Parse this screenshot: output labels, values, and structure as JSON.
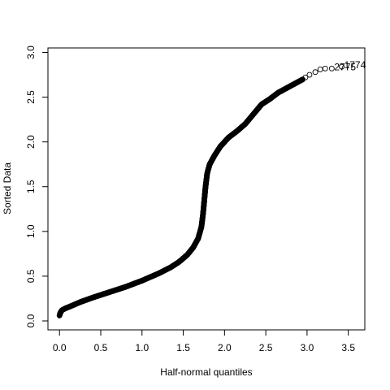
{
  "chart_data": {
    "type": "scatter",
    "title": "",
    "xlabel": "Half-normal quantiles",
    "ylabel": "Sorted Data",
    "xlim": [
      -0.14,
      3.7
    ],
    "ylim": [
      -0.1,
      3.05
    ],
    "x_ticks": [
      0.0,
      0.5,
      1.0,
      1.5,
      2.0,
      2.5,
      3.0,
      3.5
    ],
    "x_tick_labels": [
      "0.0",
      "0.5",
      "1.0",
      "1.5",
      "2.0",
      "2.5",
      "3.0",
      "3.5"
    ],
    "y_ticks": [
      0.0,
      0.5,
      1.0,
      1.5,
      2.0,
      2.5,
      3.0
    ],
    "y_tick_labels": [
      "0.0",
      "0.5",
      "1.0",
      "1.5",
      "2.0",
      "2.5",
      "3.0"
    ],
    "grid": false,
    "marker": "open-circle",
    "series": [
      {
        "curve_points": [
          [
            0.0,
            0.06
          ],
          [
            0.01,
            0.09
          ],
          [
            0.03,
            0.12
          ],
          [
            0.07,
            0.14
          ],
          [
            0.15,
            0.17
          ],
          [
            0.25,
            0.21
          ],
          [
            0.4,
            0.26
          ],
          [
            0.6,
            0.32
          ],
          [
            0.8,
            0.38
          ],
          [
            1.0,
            0.45
          ],
          [
            1.2,
            0.53
          ],
          [
            1.35,
            0.6
          ],
          [
            1.45,
            0.66
          ],
          [
            1.55,
            0.74
          ],
          [
            1.62,
            0.82
          ],
          [
            1.68,
            0.92
          ],
          [
            1.72,
            1.05
          ],
          [
            1.74,
            1.2
          ],
          [
            1.755,
            1.35
          ],
          [
            1.77,
            1.5
          ],
          [
            1.79,
            1.65
          ],
          [
            1.82,
            1.75
          ],
          [
            1.88,
            1.85
          ],
          [
            1.95,
            1.95
          ],
          [
            2.05,
            2.05
          ],
          [
            2.15,
            2.12
          ],
          [
            2.25,
            2.2
          ],
          [
            2.35,
            2.31
          ],
          [
            2.45,
            2.42
          ],
          [
            2.55,
            2.48
          ],
          [
            2.65,
            2.55
          ],
          [
            2.75,
            2.6
          ],
          [
            2.85,
            2.65
          ],
          [
            2.95,
            2.7
          ]
        ],
        "extra_points": [
          [
            2.98,
            2.72
          ],
          [
            3.03,
            2.75
          ],
          [
            3.1,
            2.78
          ],
          [
            3.16,
            2.81
          ],
          [
            3.22,
            2.82
          ],
          [
            3.3,
            2.82
          ],
          [
            3.42,
            2.84
          ]
        ]
      }
    ],
    "annotations": [
      {
        "text": "1774",
        "x": 3.42,
        "y": 2.84
      },
      {
        "text": "2775",
        "x": 3.3,
        "y": 2.82
      }
    ]
  }
}
